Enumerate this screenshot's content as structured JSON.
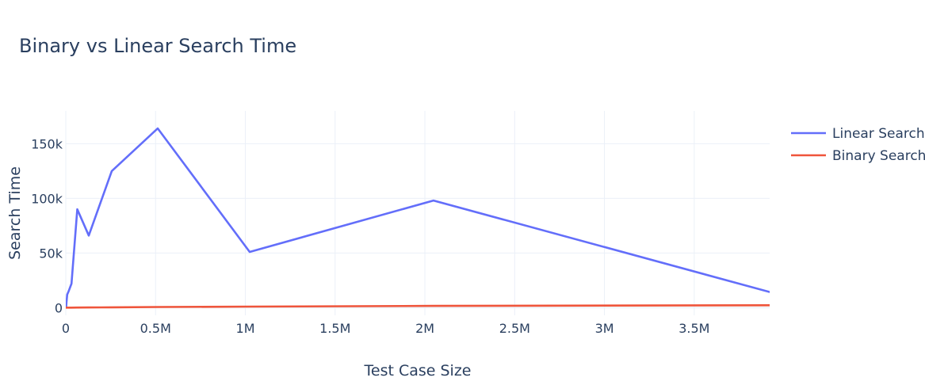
{
  "chart_data": {
    "type": "line",
    "title": "Binary vs Linear Search Time",
    "xlabel": "Test Case Size",
    "ylabel": "Search Time",
    "xlim": [
      0,
      3920000
    ],
    "ylim": [
      -7000,
      180000
    ],
    "grid": true,
    "legend_position": "top-right",
    "x_ticks": [
      {
        "value": 0,
        "label": "0"
      },
      {
        "value": 500000,
        "label": "0.5M"
      },
      {
        "value": 1000000,
        "label": "1M"
      },
      {
        "value": 1500000,
        "label": "1.5M"
      },
      {
        "value": 2000000,
        "label": "2M"
      },
      {
        "value": 2500000,
        "label": "2.5M"
      },
      {
        "value": 3000000,
        "label": "3M"
      },
      {
        "value": 3500000,
        "label": "3.5M"
      }
    ],
    "y_ticks": [
      {
        "value": 0,
        "label": "0"
      },
      {
        "value": 50000,
        "label": "50k"
      },
      {
        "value": 100000,
        "label": "100k"
      },
      {
        "value": 150000,
        "label": "150k"
      }
    ],
    "series": [
      {
        "name": "Linear Search",
        "color": "#636efa",
        "x": [
          1000,
          2000,
          4000,
          8000,
          16000,
          32000,
          64000,
          128000,
          256000,
          512000,
          1024000,
          2048000,
          4096000
        ],
        "y": [
          300,
          800,
          5000,
          12000,
          15000,
          22000,
          90000,
          66000,
          125000,
          164000,
          51000,
          98000,
          6500
        ]
      },
      {
        "name": "Binary Search",
        "color": "#ef553b",
        "x": [
          1000,
          2000,
          4000,
          8000,
          16000,
          32000,
          64000,
          128000,
          256000,
          512000,
          1024000,
          2048000,
          4096000
        ],
        "y": [
          5,
          8,
          12,
          20,
          35,
          60,
          110,
          200,
          350,
          600,
          1000,
          1600,
          2300
        ]
      }
    ]
  }
}
